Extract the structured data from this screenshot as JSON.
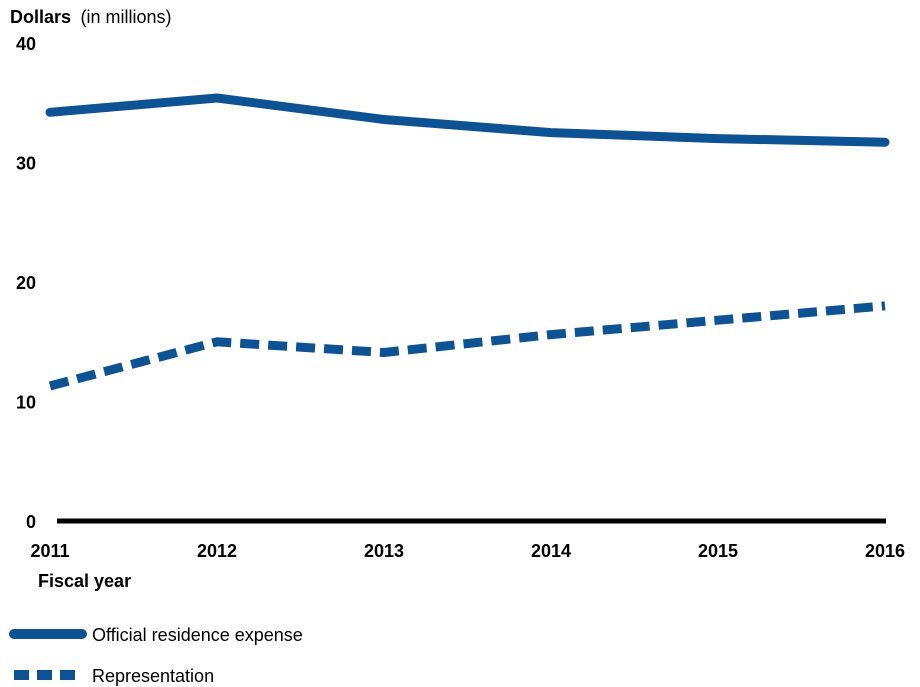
{
  "chart_data": {
    "type": "line",
    "ylabel": "Dollars",
    "ylabel_unit": "(in millions)",
    "xlabel": "Fiscal year",
    "x": [
      "2011",
      "2012",
      "2013",
      "2014",
      "2015",
      "2016"
    ],
    "yticks": [
      "0",
      "10",
      "20",
      "30",
      "40"
    ],
    "ylim": [
      0,
      40
    ],
    "grid": false,
    "legend_position": "bottom-left",
    "series": [
      {
        "name": "Official residence expense",
        "style": "solid",
        "color": "#0d5394",
        "values": [
          34.2,
          35.4,
          33.6,
          32.5,
          32.0,
          31.7
        ]
      },
      {
        "name": "Representation",
        "style": "dashed",
        "color": "#0d5394",
        "values": [
          11.3,
          15.0,
          14.1,
          15.6,
          16.8,
          18.0
        ]
      }
    ]
  }
}
